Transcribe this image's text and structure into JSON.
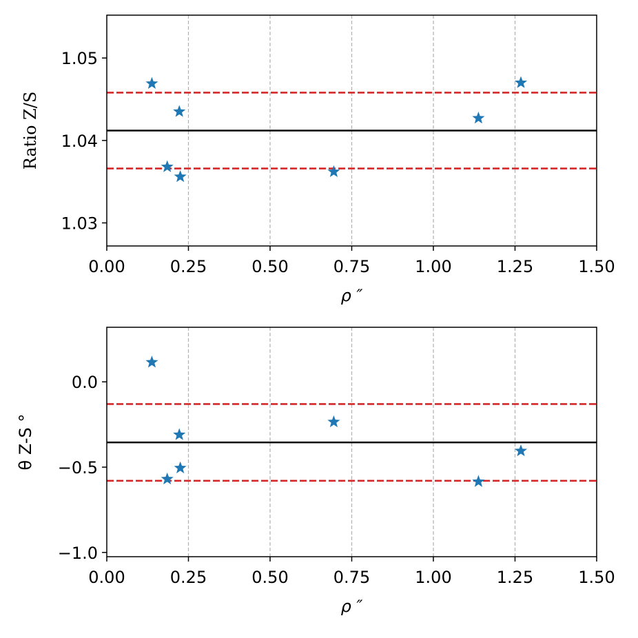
{
  "chart_data": [
    {
      "type": "scatter",
      "xlabel": "ρ ″",
      "ylabel": "Ratio Z/S",
      "xlim": [
        0.0,
        1.5
      ],
      "ylim": [
        1.0272,
        1.0552
      ],
      "xticks": [
        0.0,
        0.25,
        0.5,
        0.75,
        1.0,
        1.25,
        1.5
      ],
      "xtick_labels": [
        "0.00",
        "0.25",
        "0.50",
        "0.75",
        "1.00",
        "1.25",
        "1.50"
      ],
      "yticks": [
        1.03,
        1.04,
        1.05
      ],
      "ytick_labels": [
        "1.03",
        "1.04",
        "1.05"
      ],
      "grid": "vertical dashed at x ticks",
      "marker": "star",
      "series": [
        {
          "color": "#1f77b4",
          "points": [
            {
              "x": 0.138,
              "y": 1.0469
            },
            {
              "x": 0.222,
              "y": 1.0435
            },
            {
              "x": 0.185,
              "y": 1.0368
            },
            {
              "x": 0.225,
              "y": 1.0356
            },
            {
              "x": 0.695,
              "y": 1.0362
            },
            {
              "x": 1.138,
              "y": 1.0427
            },
            {
              "x": 1.268,
              "y": 1.047
            }
          ]
        }
      ],
      "hlines": [
        {
          "y": 1.0412,
          "color": "#000000",
          "style": "solid"
        },
        {
          "y": 1.0458,
          "color": "#d62728",
          "style": "dashed"
        },
        {
          "y": 1.0366,
          "color": "#d62728",
          "style": "dashed"
        }
      ]
    },
    {
      "type": "scatter",
      "xlabel": "ρ ″",
      "ylabel": "θ Z-S °",
      "xlim": [
        0.0,
        1.5
      ],
      "ylim": [
        -1.025,
        0.32
      ],
      "xticks": [
        0.0,
        0.25,
        0.5,
        0.75,
        1.0,
        1.25,
        1.5
      ],
      "xtick_labels": [
        "0.00",
        "0.25",
        "0.50",
        "0.75",
        "1.00",
        "1.25",
        "1.50"
      ],
      "yticks": [
        -1.0,
        -0.5,
        0.0
      ],
      "ytick_labels": [
        "−1.0",
        "−0.5",
        "0.0"
      ],
      "grid": "vertical dashed at x ticks",
      "marker": "star",
      "series": [
        {
          "color": "#1f77b4",
          "points": [
            {
              "x": 0.138,
              "y": 0.115
            },
            {
              "x": 0.222,
              "y": -0.31
            },
            {
              "x": 0.185,
              "y": -0.57
            },
            {
              "x": 0.225,
              "y": -0.505
            },
            {
              "x": 0.695,
              "y": -0.235
            },
            {
              "x": 1.138,
              "y": -0.585
            },
            {
              "x": 1.268,
              "y": -0.405
            }
          ]
        }
      ],
      "hlines": [
        {
          "y": -0.355,
          "color": "#000000",
          "style": "solid"
        },
        {
          "y": -0.13,
          "color": "#d62728",
          "style": "dashed"
        },
        {
          "y": -0.58,
          "color": "#d62728",
          "style": "dashed"
        }
      ]
    }
  ]
}
